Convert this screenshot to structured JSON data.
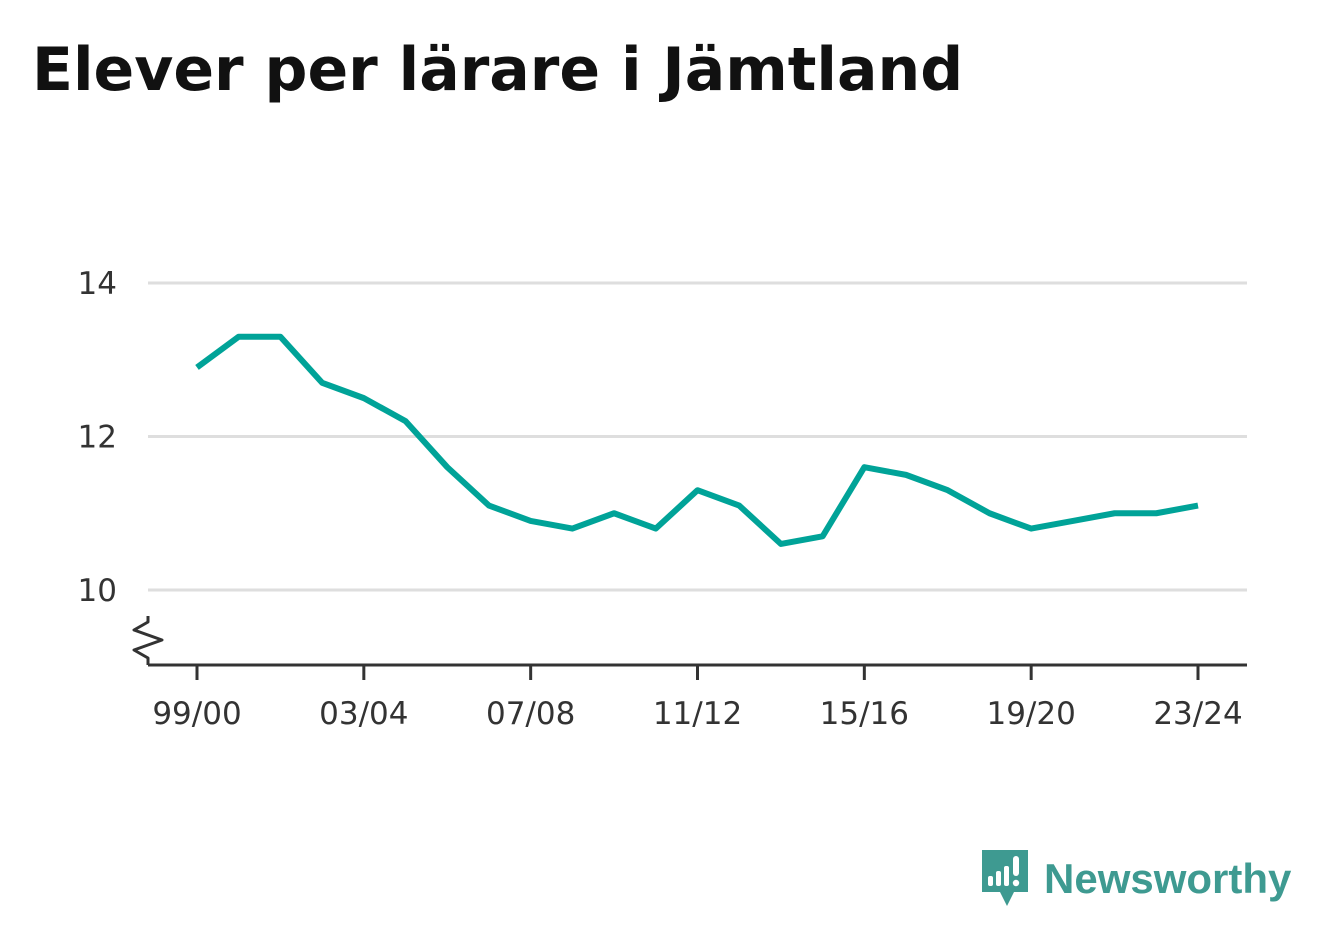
{
  "title": "Elever per lärare i Jämtland",
  "brand": {
    "name": "Newsworthy",
    "logo_icon": "bar-chart-speech-bubble-icon",
    "color": "#3e9a91"
  },
  "chart_data": {
    "type": "line",
    "title": "Elever per lärare i Jämtland",
    "xlabel": "",
    "ylabel": "",
    "x": [
      "99/00",
      "00/01",
      "01/02",
      "02/03",
      "03/04",
      "04/05",
      "05/06",
      "06/07",
      "07/08",
      "08/09",
      "09/10",
      "10/11",
      "11/12",
      "12/13",
      "13/14",
      "14/15",
      "15/16",
      "16/17",
      "17/18",
      "18/19",
      "19/20",
      "20/21",
      "21/22",
      "22/23",
      "23/24"
    ],
    "x_tick_labels": [
      "99/00",
      "03/04",
      "07/08",
      "11/12",
      "15/16",
      "19/20",
      "23/24"
    ],
    "series": [
      {
        "values": [
          12.9,
          13.3,
          13.3,
          12.7,
          12.5,
          12.2,
          11.6,
          11.1,
          10.9,
          10.8,
          11.0,
          10.8,
          11.3,
          11.1,
          10.6,
          10.7,
          11.6,
          11.5,
          11.3,
          11.0,
          10.8,
          10.9,
          11.0,
          11.0,
          11.1
        ],
        "color": "#00a398"
      }
    ],
    "y_ticks": [
      10,
      12,
      14
    ],
    "ylim": [
      9,
      14
    ],
    "y_axis_break": true,
    "grid": true,
    "legend": "none"
  }
}
